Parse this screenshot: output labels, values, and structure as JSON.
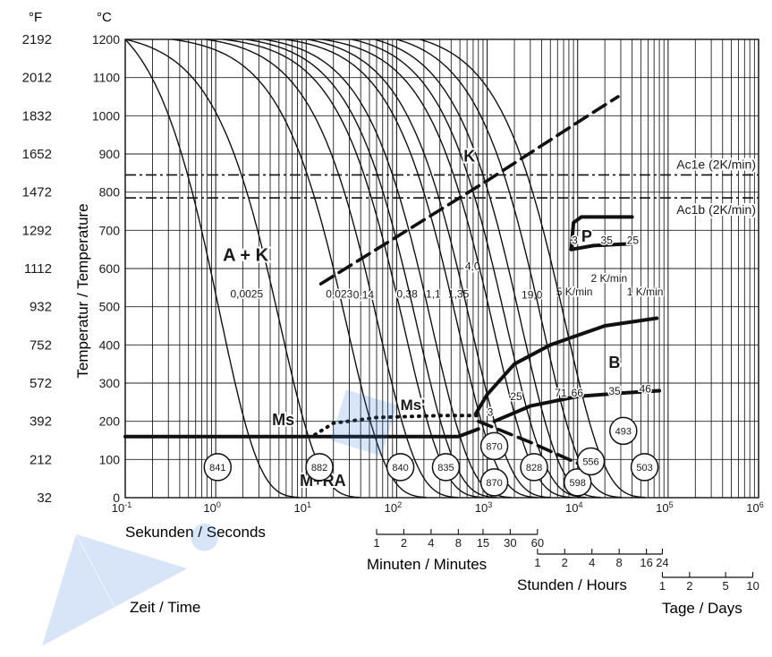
{
  "chart_data": {
    "type": "line",
    "title": "",
    "unit_labels": {
      "fahrenheit": "°F",
      "celsius": "°C"
    },
    "ylabel": "Temperatur / Temperature",
    "ylim_celsius": [
      0,
      1200
    ],
    "y_ticks_celsius": [
      0,
      100,
      200,
      300,
      400,
      500,
      600,
      700,
      800,
      900,
      1000,
      1100,
      1200
    ],
    "y_ticks_fahrenheit": [
      "32",
      "212",
      "392",
      "572",
      "752",
      "932",
      "1112",
      "1292",
      "1472",
      "1652",
      "1832",
      "2012",
      "2192"
    ],
    "x_scale": "log",
    "xlim_seconds": [
      0.1,
      1000000
    ],
    "x_major_ticks": [
      {
        "value": 0.1,
        "base": "10",
        "exp": "-1"
      },
      {
        "value": 1,
        "base": "10",
        "exp": "0"
      },
      {
        "value": 10,
        "base": "10",
        "exp": "1"
      },
      {
        "value": 100,
        "base": "10",
        "exp": "2"
      },
      {
        "value": 1000,
        "base": "10",
        "exp": "3"
      },
      {
        "value": 10000,
        "base": "10",
        "exp": "4"
      },
      {
        "value": 100000,
        "base": "10",
        "exp": "5"
      },
      {
        "value": 1000000,
        "base": "10",
        "exp": "6"
      }
    ],
    "xlabel_seconds": "Sekunden / Seconds",
    "xlabel_minutes": "Minuten / Minutes",
    "xlabel_hours": "Stunden / Hours",
    "xlabel_days": "Tage / Days",
    "xlabel_time": "Zeit / Time",
    "minute_ticks": [
      {
        "label": "1",
        "seconds": 60
      },
      {
        "label": "2",
        "seconds": 120
      },
      {
        "label": "4",
        "seconds": 240
      },
      {
        "label": "8",
        "seconds": 480
      },
      {
        "label": "15",
        "seconds": 900
      },
      {
        "label": "30",
        "seconds": 1800
      },
      {
        "label": "60",
        "seconds": 3600
      }
    ],
    "hour_ticks": [
      {
        "label": "1",
        "seconds": 3600
      },
      {
        "label": "2",
        "seconds": 7200
      },
      {
        "label": "4",
        "seconds": 14400
      },
      {
        "label": "8",
        "seconds": 28800
      },
      {
        "label": "16",
        "seconds": 57600
      },
      {
        "label": "24",
        "seconds": 86400
      }
    ],
    "day_ticks": [
      {
        "label": "1",
        "seconds": 86400
      },
      {
        "label": "2",
        "seconds": 172800
      },
      {
        "label": "5",
        "seconds": 432000
      },
      {
        "label": "10",
        "seconds": 864000
      }
    ],
    "reference_lines": [
      {
        "name": "Ac1e (2K/min)",
        "temperature": 845
      },
      {
        "name": "Ac1b (2K/min)",
        "temperature": 785
      }
    ],
    "cooling_curves": [
      {
        "t0": 0.1,
        "tau": 1.11,
        "label": ""
      },
      {
        "t0": 0.1,
        "tau": 5.2,
        "label": "0,0025",
        "label_at": [
          1.45,
          524
        ]
      },
      {
        "t0": 0.33,
        "tau": 28.4,
        "label": "0,023",
        "label_at": [
          16.5,
          524
        ]
      },
      {
        "t0": 0.77,
        "tau": 63.2,
        "label": "0,14",
        "label_at": [
          33,
          522
        ]
      },
      {
        "t0": 1.2,
        "tau": 121,
        "label": "0,38",
        "label_at": [
          100,
          524
        ]
      },
      {
        "t0": 2.15,
        "tau": 169,
        "label": "1,1",
        "label_at": [
          210,
          524
        ]
      },
      {
        "t0": 3.4,
        "tau": 247,
        "label": "1,35",
        "label_at": [
          370,
          524
        ]
      },
      {
        "t0": 5.8,
        "tau": 477,
        "label": "4,0",
        "label_at": [
          570,
          597
        ]
      },
      {
        "t0": 10.3,
        "tau": 665,
        "label": "",
        "label_at": null
      },
      {
        "t0": 15,
        "tau": 1170,
        "label": "19,0",
        "label_at": [
          2400,
          522
        ]
      },
      {
        "t0": 32,
        "tau": 1650,
        "label": "",
        "label_at": null
      },
      {
        "t0": 57,
        "tau": 2400,
        "label": "5 K/min",
        "label_at": [
          5800,
          530
        ]
      },
      {
        "t0": 100,
        "tau": 4100,
        "label": "2 K/min",
        "label_at": [
          14000,
          565
        ]
      },
      {
        "t0": 180,
        "tau": 7400,
        "label": "1 K/min",
        "label_at": [
          35000,
          530
        ]
      }
    ],
    "transformation_lines": [
      {
        "name": "K",
        "style": "dashed",
        "points": [
          [
            14.5,
            560
          ],
          [
            1000,
            830
          ],
          [
            13000,
            1000
          ],
          [
            28000,
            1050
          ]
        ]
      },
      {
        "name": "Ms",
        "style": "solid",
        "points": [
          [
            0.1,
            160
          ],
          [
            13,
            160
          ],
          [
            200,
            160
          ],
          [
            480,
            160
          ],
          [
            800,
            180
          ]
        ]
      },
      {
        "name": "Ms'",
        "style": "dotted",
        "points": [
          [
            12.5,
            165
          ],
          [
            20,
            195
          ],
          [
            60,
            210
          ],
          [
            300,
            215
          ],
          [
            800,
            215
          ]
        ]
      },
      {
        "name": "B upper",
        "style": "solid",
        "points": [
          [
            750,
            220
          ],
          [
            1000,
            270
          ],
          [
            2000,
            350
          ],
          [
            5000,
            400
          ],
          [
            20000,
            450
          ],
          [
            75000,
            470
          ]
        ]
      },
      {
        "name": "B lower",
        "style": "solid",
        "points": [
          [
            1200,
            200
          ],
          [
            3000,
            240
          ],
          [
            10000,
            265
          ],
          [
            35000,
            275
          ],
          [
            80000,
            280
          ]
        ]
      },
      {
        "name": "Ms dashed tail",
        "style": "dashed",
        "points": [
          [
            800,
            200
          ],
          [
            3000,
            145
          ],
          [
            10000,
            90
          ]
        ]
      },
      {
        "name": "P upper",
        "style": "solid",
        "points": [
          [
            8500,
            650
          ],
          [
            9000,
            720
          ],
          [
            11000,
            735
          ],
          [
            40000,
            735
          ]
        ]
      },
      {
        "name": "P lower",
        "style": "solid",
        "points": [
          [
            8500,
            650
          ],
          [
            15000,
            660
          ],
          [
            40000,
            665
          ]
        ]
      }
    ],
    "region_labels": [
      {
        "text": "A + K",
        "at": [
          1.2,
          620
        ],
        "size": 20
      },
      {
        "text": "K",
        "at": [
          550,
          880
        ],
        "size": 18
      },
      {
        "text": "P",
        "at": [
          11000,
          670
        ],
        "size": 18
      },
      {
        "text": "B",
        "at": [
          22000,
          340
        ],
        "size": 18
      },
      {
        "text": "Ms",
        "at": [
          4.2,
          190
        ],
        "size": 18
      },
      {
        "text": "Ms'",
        "at": [
          110,
          230
        ],
        "size": 17
      },
      {
        "text": "M+RA",
        "at": [
          8.5,
          30
        ],
        "size": 18
      }
    ],
    "phase_percent_labels": [
      {
        "text": "3",
        "at": [
          8600,
          665
        ]
      },
      {
        "text": "35",
        "at": [
          18000,
          665
        ]
      },
      {
        "text": "25",
        "at": [
          35000,
          665
        ]
      },
      {
        "text": "3",
        "at": [
          1000,
          215
        ]
      },
      {
        "text": "25",
        "at": [
          1800,
          255
        ]
      },
      {
        "text": "71",
        "at": [
          5600,
          265
        ]
      },
      {
        "text": "66",
        "at": [
          8500,
          265
        ]
      },
      {
        "text": "35",
        "at": [
          22000,
          270
        ]
      },
      {
        "text": "46",
        "at": [
          48000,
          275
        ]
      }
    ],
    "hardness_values": [
      {
        "text": "841",
        "at": [
          1.05,
          80
        ]
      },
      {
        "text": "882",
        "at": [
          14,
          80
        ]
      },
      {
        "text": "840",
        "at": [
          110,
          80
        ]
      },
      {
        "text": "835",
        "at": [
          350,
          80
        ]
      },
      {
        "text": "870",
        "at": [
          1200,
          135
        ]
      },
      {
        "text": "870",
        "at": [
          1200,
          40
        ]
      },
      {
        "text": "828",
        "at": [
          3300,
          80
        ]
      },
      {
        "text": "598",
        "at": [
          10000,
          40
        ]
      },
      {
        "text": "556",
        "at": [
          14000,
          95
        ]
      },
      {
        "text": "493",
        "at": [
          32000,
          175
        ]
      },
      {
        "text": "503",
        "at": [
          55000,
          80
        ]
      }
    ]
  }
}
